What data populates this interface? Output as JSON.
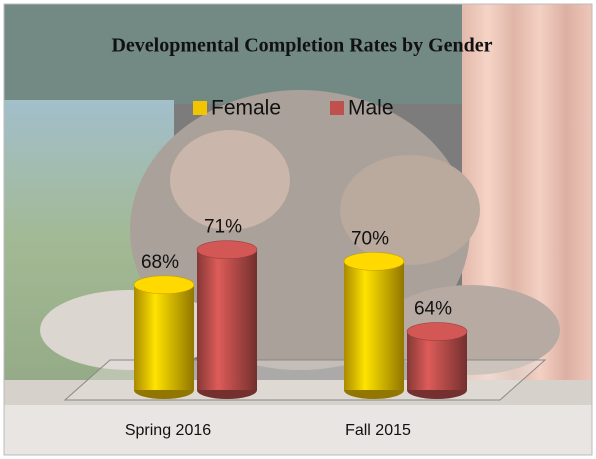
{
  "chart_data": {
    "type": "bar",
    "title": "Developmental Completion Rates by Gender",
    "categories": [
      "Spring 2016",
      "Fall 2015"
    ],
    "series": [
      {
        "name": "Female",
        "color": "#f2c500",
        "values": [
          68,
          70
        ],
        "value_labels": [
          "68%",
          "70%"
        ]
      },
      {
        "name": "Male",
        "color": "#c0504d",
        "values": [
          71,
          64
        ],
        "value_labels": [
          "71%",
          "64%"
        ]
      }
    ],
    "ylim": [
      59,
      72
    ],
    "legend": "top"
  }
}
